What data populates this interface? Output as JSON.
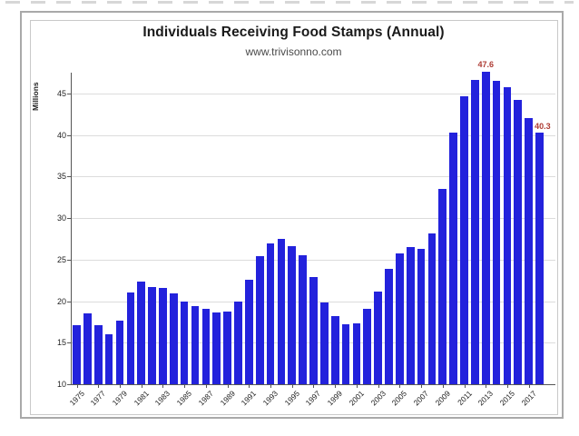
{
  "chart_data": {
    "type": "bar",
    "title": "Individuals Receiving Food Stamps (Annual)",
    "subtitle": "www.trivisonno.com",
    "ylabel": "Millions",
    "categories": [
      "1975",
      "1976",
      "1977",
      "1978",
      "1979",
      "1980",
      "1981",
      "1982",
      "1983",
      "1984",
      "1985",
      "1986",
      "1987",
      "1988",
      "1989",
      "1990",
      "1991",
      "1992",
      "1993",
      "1994",
      "1995",
      "1996",
      "1997",
      "1998",
      "1999",
      "2000",
      "2001",
      "2002",
      "2003",
      "2004",
      "2005",
      "2006",
      "2007",
      "2008",
      "2009",
      "2010",
      "2011",
      "2012",
      "2013",
      "2014",
      "2015",
      "2016",
      "2017",
      "2018"
    ],
    "values": [
      17.1,
      18.5,
      17.1,
      16.0,
      17.7,
      21.1,
      22.4,
      21.7,
      21.6,
      20.9,
      19.9,
      19.4,
      19.1,
      18.6,
      18.8,
      20.0,
      22.6,
      25.4,
      27.0,
      27.5,
      26.6,
      25.5,
      22.9,
      19.8,
      18.2,
      17.2,
      17.3,
      19.1,
      21.2,
      23.9,
      25.7,
      26.5,
      26.3,
      28.2,
      33.5,
      40.3,
      44.7,
      46.6,
      47.6,
      46.5,
      45.8,
      44.2,
      42.1,
      40.3
    ],
    "ylim": [
      10,
      50
    ],
    "yticks": [
      10,
      15,
      20,
      25,
      30,
      35,
      40,
      45
    ],
    "xtick_labels": [
      "1975",
      "1977",
      "1979",
      "1981",
      "1983",
      "1985",
      "1987",
      "1989",
      "1991",
      "1993",
      "1995",
      "1997",
      "1999",
      "2001",
      "2003",
      "2005",
      "2007",
      "2009",
      "2011",
      "2013",
      "2015",
      "2017"
    ],
    "grid": true,
    "legend": "none",
    "bar_color": "#2322dc",
    "annotation_color": "#ae3c34",
    "annotations": [
      {
        "year": "2013",
        "label": "47.6",
        "placement": "above"
      },
      {
        "year": "2018",
        "label": "40.3",
        "placement": "right"
      }
    ]
  }
}
